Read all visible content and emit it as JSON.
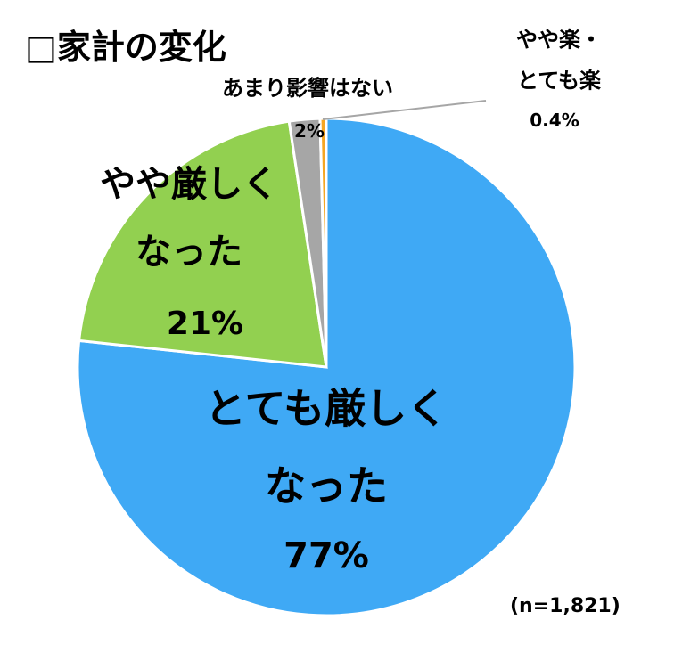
{
  "chart_data": {
    "type": "pie",
    "title": "□家計の変化",
    "note": "(n=1,821)",
    "categories": [
      "とても厳しく\nなった",
      "やや厳しく\nなった",
      "あまり影響はない",
      "やや楽・\nとても楽"
    ],
    "values": [
      77,
      21,
      2,
      0.4
    ],
    "value_labels": [
      "77%",
      "21%",
      "2%",
      "0.4%"
    ],
    "colors": [
      "#3fa9f5",
      "#92d050",
      "#a6a6a6",
      "#f5a623"
    ]
  }
}
